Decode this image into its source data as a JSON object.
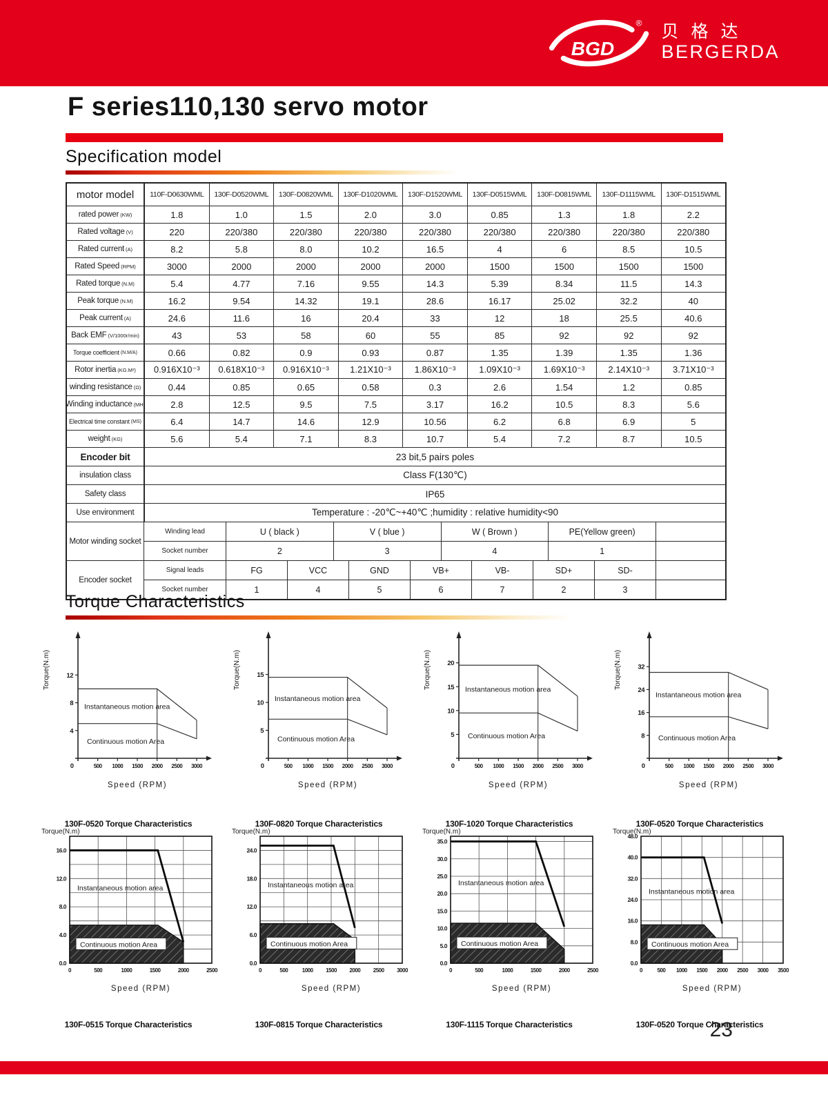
{
  "header": {
    "logo_text": "BGD",
    "registered": "®",
    "brand_cn": "贝格达",
    "brand_en": "BERGERDA"
  },
  "title": "F series110,130 servo motor",
  "sections": {
    "spec": "Specification model",
    "torque": "Torque Characteristics"
  },
  "page_number": "23",
  "colors": {
    "banner_red": "#e3001b",
    "accent_red": "#e60012"
  },
  "spec_table": {
    "header": {
      "label": "motor model",
      "models": [
        "110F-D0630WML",
        "130F-D0520WML",
        "130F-D0820WML",
        "130F-D1020WML",
        "130F-D1520WML",
        "130F-D0515WML",
        "130F-D0815WML",
        "130F-D1115WML",
        "130F-D1515WML"
      ]
    },
    "rows": [
      {
        "label": "rated power",
        "unit": "(KW)",
        "values": [
          "1.8",
          "1.0",
          "1.5",
          "2.0",
          "3.0",
          "0.85",
          "1.3",
          "1.8",
          "2.2"
        ]
      },
      {
        "label": "Rated voltage",
        "unit": "(V)",
        "values": [
          "220",
          "220/380",
          "220/380",
          "220/380",
          "220/380",
          "220/380",
          "220/380",
          "220/380",
          "220/380"
        ]
      },
      {
        "label": "Rated current",
        "unit": "(A)",
        "values": [
          "8.2",
          "5.8",
          "8.0",
          "10.2",
          "16.5",
          "4",
          "6",
          "8.5",
          "10.5"
        ]
      },
      {
        "label": "Rated Speed",
        "unit": "(RPM)",
        "values": [
          "3000",
          "2000",
          "2000",
          "2000",
          "2000",
          "1500",
          "1500",
          "1500",
          "1500"
        ]
      },
      {
        "label": "Rated torque",
        "unit": "(N.M)",
        "values": [
          "5.4",
          "4.77",
          "7.16",
          "9.55",
          "14.3",
          "5.39",
          "8.34",
          "11.5",
          "14.3"
        ]
      },
      {
        "label": "Peak torque",
        "unit": "(N.M)",
        "values": [
          "16.2",
          "9.54",
          "14.32",
          "19.1",
          "28.6",
          "16.17",
          "25.02",
          "32.2",
          "40"
        ]
      },
      {
        "label": "Peak current",
        "unit": "(A)",
        "values": [
          "24.6",
          "11.6",
          "16",
          "20.4",
          "33",
          "12",
          "18",
          "25.5",
          "40.6"
        ]
      },
      {
        "label": "Back EMF",
        "unit": "(V/1000r/min)",
        "values": [
          "43",
          "53",
          "58",
          "60",
          "55",
          "85",
          "92",
          "92",
          "92"
        ]
      },
      {
        "label": "Torque coefficient",
        "unit": "(N.M/A)",
        "values": [
          "0.66",
          "0.82",
          "0.9",
          "0.93",
          "0.87",
          "1.35",
          "1.39",
          "1.35",
          "1.36"
        ]
      },
      {
        "label": "Rotor inertia",
        "unit": "(KG.M²)",
        "values": [
          "0.916X10⁻³",
          "0.618X10⁻³",
          "0.916X10⁻³",
          "1.21X10⁻³",
          "1.86X10⁻³",
          "1.09X10⁻³",
          "1.69X10⁻³",
          "2.14X10⁻³",
          "3.71X10⁻³"
        ]
      },
      {
        "label": "winding resistance",
        "unit": "(Ω)",
        "values": [
          "0.44",
          "0.85",
          "0.65",
          "0.58",
          "0.3",
          "2.6",
          "1.54",
          "1.2",
          "0.85"
        ]
      },
      {
        "label": "Winding inductance",
        "unit": "(MH)",
        "values": [
          "2.8",
          "12.5",
          "9.5",
          "7.5",
          "3.17",
          "16.2",
          "10.5",
          "8.3",
          "5.6"
        ]
      },
      {
        "label": "Electrical time constant",
        "unit": "(MS)",
        "values": [
          "6.4",
          "14.7",
          "14.6",
          "12.9",
          "10.56",
          "6.2",
          "6.8",
          "6.9",
          "5"
        ]
      },
      {
        "label": "weight",
        "unit": "(KG)",
        "values": [
          "5.6",
          "5.4",
          "7.1",
          "8.3",
          "10.7",
          "5.4",
          "7.2",
          "8.7",
          "10.5"
        ]
      }
    ],
    "span_rows": [
      {
        "label": "Encoder bit",
        "value": "23 bit,5 pairs poles",
        "bold": true
      },
      {
        "label": "insulation class",
        "value": "Class F(130℃)",
        "bold": false
      },
      {
        "label": "Safety class",
        "value": "IP65",
        "bold": false
      },
      {
        "label": "Use environment",
        "value": "Temperature : -20℃~+40℃ ;humidity : relative humidity<90",
        "bold": false
      }
    ],
    "winding_socket": {
      "label": "Motor winding socket",
      "rows": [
        {
          "sub": "Winding lead",
          "cells": [
            "U ( black )",
            "V ( blue )",
            "W ( Brown )",
            "PE(Yellow green)"
          ]
        },
        {
          "sub": "Socket number",
          "cells": [
            "2",
            "3",
            "4",
            "1"
          ]
        }
      ]
    },
    "encoder_socket": {
      "label": "Encoder socket",
      "rows": [
        {
          "sub": "Signal leads",
          "cells": [
            "FG",
            "VCC",
            "GND",
            "VB+",
            "VB-",
            "SD+",
            "SD-"
          ]
        },
        {
          "sub": "Socket number",
          "cells": [
            "1",
            "4",
            "5",
            "6",
            "7",
            "2",
            "3"
          ]
        }
      ]
    }
  },
  "chart_data": [
    {
      "type": "line",
      "style": "plain",
      "row": "top",
      "id": "t1",
      "caption": "130F-0520 Torque Characteristics",
      "ylabel": "Torque(N.m)",
      "xlabel": "Speed (RPM)",
      "ymax": 16.5,
      "xmax": 3000,
      "yticks": [
        4,
        8,
        12
      ],
      "xticks": [
        500,
        1000,
        1500,
        2000,
        2500,
        3000
      ],
      "series": [
        {
          "name": "Instantaneous motion area",
          "points": [
            [
              0,
              10
            ],
            [
              2000,
              10
            ],
            [
              3000,
              5.5
            ]
          ]
        },
        {
          "name": "Continuous motion Area",
          "points": [
            [
              0,
              5
            ],
            [
              2000,
              5
            ],
            [
              3000,
              2.8
            ]
          ]
        }
      ]
    },
    {
      "type": "line",
      "style": "plain",
      "row": "top",
      "id": "t2",
      "caption": "130F-0820 Torque Characteristics",
      "ylabel": "Torque(N.m)",
      "xlabel": "Speed (RPM)",
      "ymax": 20.5,
      "xmax": 3000,
      "yticks": [
        5,
        10,
        15
      ],
      "xticks": [
        500,
        1000,
        1500,
        2000,
        2500,
        3000
      ],
      "series": [
        {
          "name": "Instantaneous motion area",
          "points": [
            [
              0,
              14.5
            ],
            [
              2000,
              14.5
            ],
            [
              3000,
              9
            ]
          ]
        },
        {
          "name": "Continuous motion Area",
          "points": [
            [
              0,
              7
            ],
            [
              2000,
              7
            ],
            [
              3000,
              4.2
            ]
          ]
        }
      ]
    },
    {
      "type": "line",
      "style": "plain",
      "row": "top",
      "id": "t3",
      "caption": "130F-1020 Torque Characteristics",
      "ylabel": "Torque(N.m)",
      "xlabel": "Speed (RPM)",
      "ymax": 24,
      "xmax": 3000,
      "yticks": [
        5,
        10,
        15,
        20
      ],
      "xticks": [
        500,
        1000,
        1500,
        2000,
        2500,
        3000
      ],
      "series": [
        {
          "name": "Instantaneous motion area",
          "points": [
            [
              0,
              19.5
            ],
            [
              2000,
              19.5
            ],
            [
              3000,
              13
            ]
          ]
        },
        {
          "name": "Continuous motion Area",
          "points": [
            [
              0,
              9.5
            ],
            [
              2000,
              9.5
            ],
            [
              3000,
              5.7
            ]
          ]
        }
      ]
    },
    {
      "type": "line",
      "style": "plain",
      "row": "top",
      "id": "t4",
      "caption": "130F-0520 Torque Characteristics",
      "ylabel": "Torque(N.m)",
      "xlabel": "Speed (RPM)",
      "ymax": 40,
      "xmax": 3000,
      "yticks": [
        8,
        16,
        24,
        32
      ],
      "xticks": [
        500,
        1000,
        1500,
        2000,
        2500,
        3000
      ],
      "series": [
        {
          "name": "Instantaneous motion area",
          "points": [
            [
              0,
              30
            ],
            [
              2000,
              30
            ],
            [
              3000,
              24
            ]
          ]
        },
        {
          "name": "Continuous motion Area",
          "points": [
            [
              0,
              14.5
            ],
            [
              2000,
              14.5
            ],
            [
              3000,
              10.3
            ]
          ]
        }
      ]
    },
    {
      "type": "line",
      "style": "grid",
      "row": "bottom",
      "id": "b1",
      "caption": "130F-0515 Torque Characteristics",
      "ylabel": "Torque(N.m)",
      "xlabel": "Speed (RPM)",
      "ymax": 18,
      "ygrid": 2,
      "xmax": 2500,
      "xgrid": 500,
      "yticks": [
        0,
        4,
        8,
        12,
        16
      ],
      "xticks": [
        0,
        500,
        1000,
        1500,
        2000,
        2500
      ],
      "series": [
        {
          "name": "Instantaneous motion area",
          "points": [
            [
              0,
              16
            ],
            [
              1550,
              16
            ],
            [
              2000,
              3
            ]
          ]
        },
        {
          "name": "Continuous motion Area",
          "points": [
            [
              0,
              5.4
            ],
            [
              1550,
              5.4
            ],
            [
              2000,
              3
            ]
          ]
        }
      ]
    },
    {
      "type": "line",
      "style": "grid",
      "row": "bottom",
      "id": "b2",
      "caption": "130F-0815 Torque Characteristics",
      "ylabel": "Torque(N.m)",
      "xlabel": "Speed (RPM)",
      "ymax": 27,
      "ygrid": 3,
      "xmax": 3000,
      "xgrid": 500,
      "yticks": [
        0,
        6,
        12,
        18,
        24
      ],
      "xticks": [
        0,
        500,
        1000,
        1500,
        2000,
        2500,
        3000
      ],
      "series": [
        {
          "name": "Instantaneous motion area",
          "points": [
            [
              0,
              25
            ],
            [
              1550,
              25
            ],
            [
              2000,
              7.5
            ]
          ]
        },
        {
          "name": "Continuous motion Area",
          "points": [
            [
              0,
              8.4
            ],
            [
              1550,
              8.4
            ],
            [
              2000,
              5
            ]
          ]
        }
      ]
    },
    {
      "type": "line",
      "style": "grid",
      "row": "bottom",
      "id": "b3",
      "caption": "130F-1115 Torque Characteristics",
      "ylabel": "Torque(N.m)",
      "xlabel": "Speed (RPM)",
      "ymax": 36.5,
      "ygrid": 5,
      "xmax": 2500,
      "xgrid": 500,
      "yticks": [
        0,
        5,
        10,
        15,
        20,
        25,
        30,
        35
      ],
      "xticks": [
        0,
        500,
        1000,
        1500,
        2000,
        2500
      ],
      "series": [
        {
          "name": "Instantaneous motion area",
          "points": [
            [
              0,
              35
            ],
            [
              1500,
              35
            ],
            [
              2000,
              10.5
            ]
          ]
        },
        {
          "name": "Continuous motion Area",
          "points": [
            [
              0,
              11.5
            ],
            [
              1500,
              11.5
            ],
            [
              2000,
              4
            ]
          ]
        }
      ]
    },
    {
      "type": "line",
      "style": "grid",
      "row": "bottom",
      "id": "b4",
      "caption": "130F-0520 Torque Characteristics",
      "ylabel": "Torque(N.m)",
      "xlabel": "Speed (RPM)",
      "ymax": 48,
      "ygrid": 8,
      "xmax": 3500,
      "xgrid": 500,
      "yticks": [
        0,
        8,
        16,
        24,
        32,
        40,
        48
      ],
      "xticks": [
        0,
        500,
        1000,
        1500,
        2000,
        2500,
        3000,
        3500
      ],
      "series": [
        {
          "name": "Instantaneous motion area",
          "points": [
            [
              0,
              40
            ],
            [
              1550,
              40
            ],
            [
              2000,
              15
            ]
          ]
        },
        {
          "name": "Continuous motion Area",
          "points": [
            [
              0,
              14.5
            ],
            [
              1550,
              14.5
            ],
            [
              2000,
              7
            ]
          ]
        }
      ]
    }
  ]
}
